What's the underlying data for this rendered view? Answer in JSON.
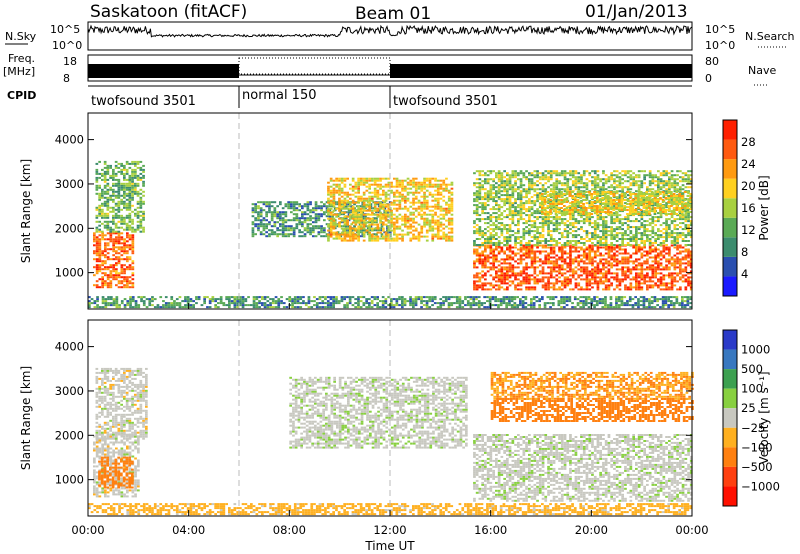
{
  "header": {
    "site": "Saskatoon (fitACF)",
    "beam": "Beam 01",
    "date": "01/Jan/2013"
  },
  "top_panels": {
    "nsky_label": "N.Sky",
    "nsky_ticks": [
      "10^5",
      "10^0"
    ],
    "nsearch_label": "N.Search",
    "freq_label_1": "Freq.",
    "freq_label_2": "[MHz]",
    "freq_ticks": [
      "18",
      "8"
    ],
    "nave_label": "Nave",
    "nave_ticks": [
      "80",
      "0"
    ],
    "cpid_label": "CPID",
    "cpid_segments": [
      {
        "label": "twofsound 3501",
        "start_hr": 0,
        "end_hr": 6
      },
      {
        "label": "normal 150",
        "start_hr": 6,
        "end_hr": 12
      },
      {
        "label": "twofsound 3501",
        "start_hr": 12,
        "end_hr": 24
      }
    ]
  },
  "x_axis": {
    "label": "Time UT",
    "ticks": [
      "00:00",
      "04:00",
      "08:00",
      "12:00",
      "16:00",
      "20:00",
      "00:00"
    ],
    "tick_hours": [
      0,
      4,
      8,
      12,
      16,
      20,
      24
    ]
  },
  "colors": {
    "power_scale": [
      "#1a1aff",
      "#2a4fb0",
      "#3c8c6e",
      "#5aaa55",
      "#a8d040",
      "#ffd020",
      "#ff9a10",
      "#ff5a10",
      "#ff2000"
    ],
    "velocity_scale": [
      "#2a3ac8",
      "#3878c0",
      "#3ca050",
      "#88d040",
      "#c8c8c0",
      "#ffb020",
      "#ff8010",
      "#ff4010",
      "#ff1000"
    ]
  },
  "chart_data": [
    {
      "type": "heatmap",
      "name": "power",
      "xlabel": "",
      "ylabel": "Slant Range [km]",
      "x_range_hr": [
        0,
        24
      ],
      "ylim": [
        180,
        4600
      ],
      "yticks": [
        1000,
        2000,
        3000,
        4000
      ],
      "colorbar": {
        "label": "Power [dB]",
        "ticks": [
          4,
          8,
          12,
          16,
          20,
          24,
          28
        ],
        "range": [
          0,
          32
        ]
      },
      "regions": [
        {
          "t0": 0.2,
          "t1": 1.8,
          "r0": 650,
          "r1": 1900,
          "value": 26
        },
        {
          "t0": 0.3,
          "t1": 2.2,
          "r0": 1900,
          "r1": 3500,
          "value": 13
        },
        {
          "t0": 0,
          "t1": 24,
          "r0": 200,
          "r1": 450,
          "value": 10
        },
        {
          "t0": 6.5,
          "t1": 12,
          "r0": 1800,
          "r1": 2600,
          "value": 10
        },
        {
          "t0": 9.5,
          "t1": 14.5,
          "r0": 1700,
          "r1": 3100,
          "value": 20
        },
        {
          "t0": 15.3,
          "t1": 24,
          "r0": 600,
          "r1": 1600,
          "value": 27
        },
        {
          "t0": 15.3,
          "t1": 24,
          "r0": 1600,
          "r1": 3300,
          "value": 15
        },
        {
          "t0": 18,
          "t1": 24,
          "r0": 2300,
          "r1": 2800,
          "value": 19
        }
      ]
    },
    {
      "type": "heatmap",
      "name": "velocity",
      "xlabel": "Time UT",
      "ylabel": "Slant Range [km]",
      "x_range_hr": [
        0,
        24
      ],
      "ylim": [
        180,
        4600
      ],
      "yticks": [
        1000,
        2000,
        3000,
        4000
      ],
      "colorbar": {
        "label": "Velocity [m s⁻¹]",
        "ticks": [
          "1000",
          "500",
          "100",
          "25",
          "−25",
          "−100",
          "−500",
          "−1000"
        ]
      },
      "regions": [
        {
          "t0": 0.2,
          "t1": 2.0,
          "r0": 600,
          "r1": 2000,
          "value": 0
        },
        {
          "t0": 0.4,
          "t1": 1.8,
          "r0": 800,
          "r1": 1500,
          "value": -150
        },
        {
          "t0": 0.3,
          "t1": 2.3,
          "r0": 1900,
          "r1": 3500,
          "value": 0
        },
        {
          "t0": 0,
          "t1": 24,
          "r0": 200,
          "r1": 450,
          "value": -50
        },
        {
          "t0": 8,
          "t1": 15,
          "r0": 1700,
          "r1": 3300,
          "value": 5
        },
        {
          "t0": 15.3,
          "t1": 24,
          "r0": 500,
          "r1": 2000,
          "value": 5
        },
        {
          "t0": 16,
          "t1": 24,
          "r0": 2300,
          "r1": 2800,
          "value": -200
        },
        {
          "t0": 16,
          "t1": 24,
          "r0": 2800,
          "r1": 3400,
          "value": -100
        }
      ]
    }
  ]
}
